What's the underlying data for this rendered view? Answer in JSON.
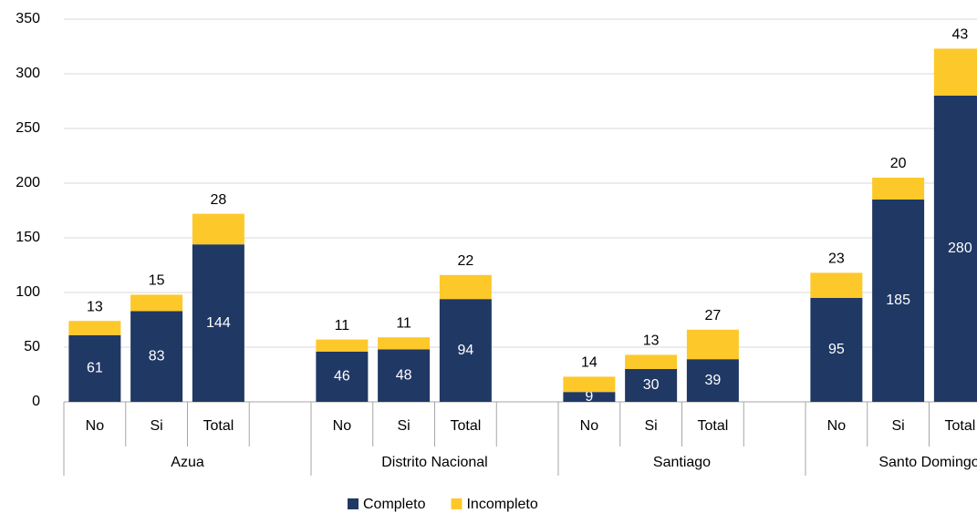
{
  "chart_data": {
    "type": "stacked_bar",
    "groups": [
      "Azua",
      "Distrito Nacional",
      "Santiago",
      "Santo Domingo"
    ],
    "categories": [
      "No",
      "Si",
      "Total",
      null,
      "No",
      "Si",
      "Total",
      null,
      "No",
      "Si",
      "Total",
      null,
      "No",
      "Si",
      "Total",
      null
    ],
    "series": [
      {
        "name": "Completo",
        "color": "#203864",
        "values": [
          61,
          83,
          144,
          null,
          46,
          48,
          94,
          null,
          9,
          30,
          39,
          null,
          95,
          185,
          280,
          null
        ]
      },
      {
        "name": "Incompleto",
        "color": "#fdc82a",
        "values": [
          13,
          15,
          28,
          null,
          11,
          11,
          22,
          null,
          14,
          13,
          27,
          null,
          23,
          20,
          43,
          null
        ]
      }
    ],
    "ylim": [
      0,
      350
    ],
    "yticks": [
      0,
      50,
      100,
      150,
      200,
      250,
      300,
      350
    ],
    "grid": true,
    "legend": "bottom"
  }
}
